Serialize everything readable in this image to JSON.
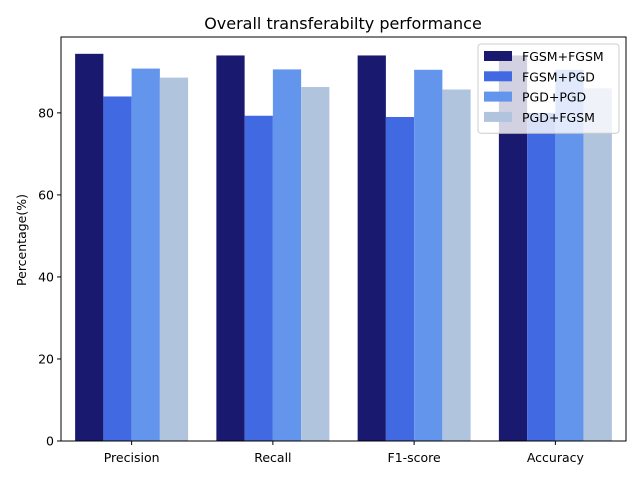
{
  "chart_data": {
    "type": "bar",
    "title": "Overall transferabilty performance",
    "xlabel": "",
    "ylabel": "Percentage(%)",
    "categories": [
      "Precision",
      "Recall",
      "F1-score",
      "Accuracy"
    ],
    "ylim": [
      0,
      98.5
    ],
    "yticks": [
      0,
      20,
      40,
      60,
      80
    ],
    "grid": false,
    "legend_position": "top-right",
    "series": [
      {
        "name": "FGSM+FGSM",
        "color": "#191970",
        "values": [
          94.4,
          94.0,
          94.0,
          94.0
        ]
      },
      {
        "name": "FGSM+PGD",
        "color": "#4169e1",
        "values": [
          84.0,
          79.3,
          79.0,
          80.0
        ]
      },
      {
        "name": "PGD+PGD",
        "color": "#6495ed",
        "values": [
          90.8,
          90.6,
          90.5,
          90.5
        ]
      },
      {
        "name": "PGD+FGSM",
        "color": "#b0c4de",
        "values": [
          88.6,
          86.3,
          85.7,
          86.0
        ]
      }
    ]
  }
}
